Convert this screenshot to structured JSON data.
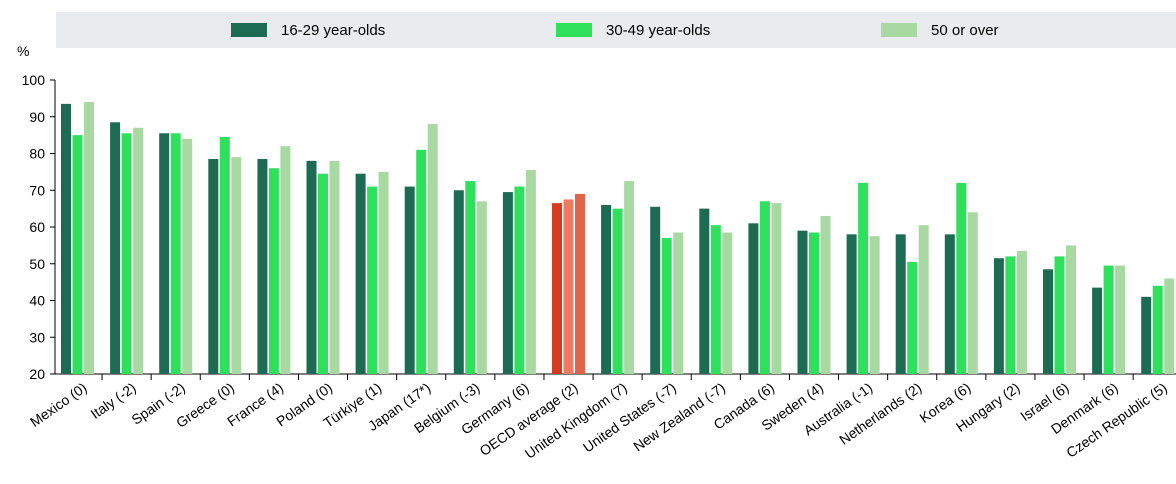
{
  "chart_data": {
    "type": "bar",
    "ylabel": "%",
    "ylim": [
      20,
      100
    ],
    "yticks": [
      20,
      30,
      40,
      50,
      60,
      70,
      80,
      90,
      100
    ],
    "grid": false,
    "legend_position": "top",
    "categories": [
      "Mexico (0)",
      "Italy (-2)",
      "Spain (-2)",
      "Greece (0)",
      "France (4)",
      "Poland (0)",
      "Türkiye (1)",
      "Japan (17*)",
      "Belgium (-3)",
      "Germany (6)",
      "OECD average (2)",
      "United Kingdom (7)",
      "United States (-7)",
      "New Zealand (-7)",
      "Canada (6)",
      "Sweden (4)",
      "Australia (-1)",
      "Netherlands (2)",
      "Korea (6)",
      "Hungary (2)",
      "Israel (6)",
      "Denmark (6)",
      "Czech Republic (5)"
    ],
    "highlight_category": "OECD average (2)",
    "series": [
      {
        "name": "16-29 year-olds",
        "color": "#1e6b54",
        "highlight_color": "#d63a1f",
        "values": [
          93.5,
          88.5,
          85.5,
          78.5,
          78.5,
          78,
          74.5,
          71,
          70,
          69.5,
          66.5,
          66,
          65.5,
          65,
          61,
          59,
          58,
          58,
          58,
          51.5,
          48.5,
          43.5,
          41
        ]
      },
      {
        "name": "30-49 year-olds",
        "color": "#2ee05c",
        "highlight_color": "#ef7a62",
        "values": [
          85,
          85.5,
          85.5,
          84.5,
          76,
          74.5,
          71,
          81,
          72.5,
          71,
          67.5,
          65,
          57,
          60.5,
          67,
          58.5,
          72,
          50.5,
          72,
          52,
          52,
          49.5,
          44
        ]
      },
      {
        "name": "50 or over",
        "color": "#a9d9a2",
        "highlight_color": "#e0634a",
        "values": [
          94,
          87,
          84,
          79,
          82,
          78,
          75,
          88,
          67,
          75.5,
          69,
          72.5,
          58.5,
          58.5,
          66.5,
          63,
          57.5,
          60.5,
          64,
          53.5,
          55,
          49.5,
          46
        ]
      }
    ]
  }
}
